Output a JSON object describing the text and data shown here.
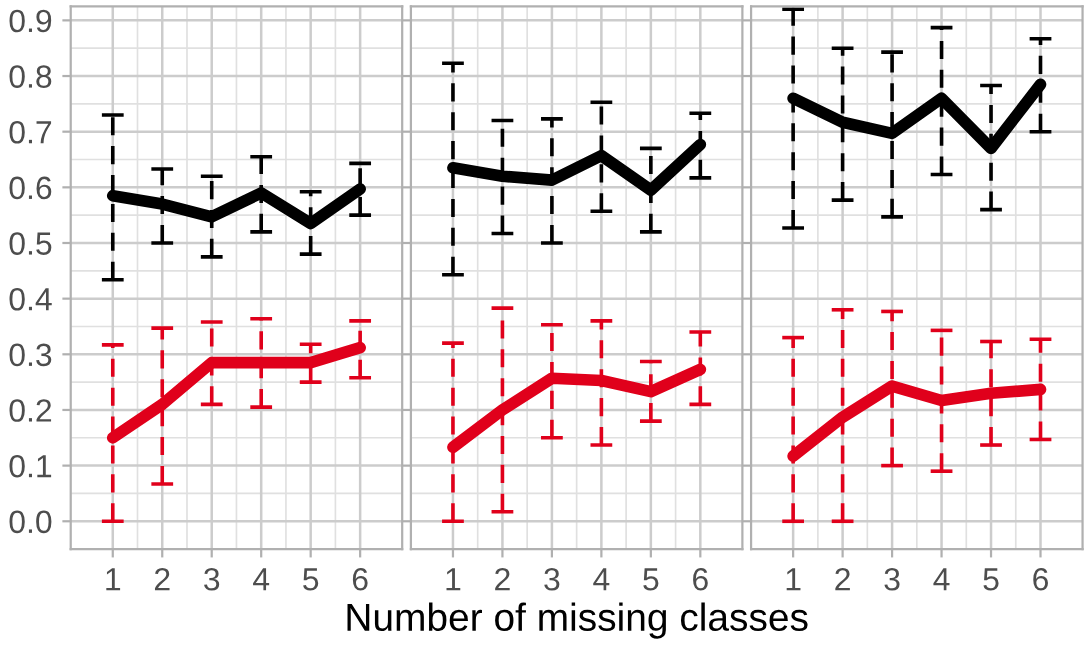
{
  "chart_data": [
    {
      "type": "line",
      "x": [
        1,
        2,
        3,
        4,
        5,
        6
      ],
      "xlim": [
        0.15,
        6.85
      ],
      "xticks": [
        1,
        2,
        3,
        4,
        5,
        6
      ],
      "ylim": [
        -0.05,
        0.925
      ],
      "yticks": [
        {
          "value": 0,
          "label": "0.0"
        },
        0.1,
        0.2,
        0.3,
        0.4,
        0.5,
        0.6,
        0.7,
        0.8,
        0.9
      ],
      "grid": true,
      "marker": "none",
      "line_style": "solid",
      "series": [
        {
          "color": "#000000",
          "values": [
            0.585,
            0.57,
            0.547,
            0.59,
            0.535,
            0.597
          ],
          "errors": [
            [
              0.434,
              0.73
            ],
            [
              0.5,
              0.633
            ],
            [
              0.475,
              0.62
            ],
            [
              0.52,
              0.655
            ],
            [
              0.48,
              0.592
            ],
            [
              0.55,
              0.643
            ]
          ]
        },
        {
          "color": "#e0001b",
          "values": [
            0.15,
            0.21,
            0.285,
            0.285,
            0.285,
            0.312
          ],
          "errors": [
            [
              0.0,
              0.317
            ],
            [
              0.067,
              0.347
            ],
            [
              0.21,
              0.358
            ],
            [
              0.205,
              0.364
            ],
            [
              0.25,
              0.318
            ],
            [
              0.258,
              0.36
            ]
          ]
        }
      ]
    },
    {
      "type": "line",
      "x": [
        1,
        2,
        3,
        4,
        5,
        6
      ],
      "xlim": [
        0.15,
        6.85
      ],
      "xticks": [
        1,
        2,
        3,
        4,
        5,
        6
      ],
      "ylim": [
        -0.05,
        0.925
      ],
      "yticks": [
        0,
        0.1,
        0.2,
        0.3,
        0.4,
        0.5,
        0.6,
        0.7,
        0.8,
        0.9
      ],
      "tick_labels": "x",
      "grid": true,
      "marker": "none",
      "line_style": "solid",
      "xlabel": "Number of missing classes",
      "series": [
        {
          "color": "#000000",
          "values": [
            0.635,
            0.62,
            0.613,
            0.657,
            0.595,
            0.677
          ],
          "errors": [
            [
              0.443,
              0.823
            ],
            [
              0.517,
              0.72
            ],
            [
              0.5,
              0.723
            ],
            [
              0.557,
              0.753
            ],
            [
              0.52,
              0.67
            ],
            [
              0.617,
              0.733
            ]
          ]
        },
        {
          "color": "#e0001b",
          "values": [
            0.133,
            0.2,
            0.257,
            0.253,
            0.233,
            0.273
          ],
          "errors": [
            [
              0.0,
              0.32
            ],
            [
              0.017,
              0.383
            ],
            [
              0.15,
              0.353
            ],
            [
              0.137,
              0.36
            ],
            [
              0.18,
              0.287
            ],
            [
              0.21,
              0.34
            ]
          ]
        }
      ]
    },
    {
      "type": "line",
      "x": [
        1,
        2,
        3,
        4,
        5,
        6
      ],
      "xlim": [
        0.15,
        6.85
      ],
      "xticks": [
        1,
        2,
        3,
        4,
        5,
        6
      ],
      "ylim": [
        -0.05,
        0.925
      ],
      "yticks": [
        0,
        0.1,
        0.2,
        0.3,
        0.4,
        0.5,
        0.6,
        0.7,
        0.8,
        0.9
      ],
      "tick_labels": "x",
      "grid": true,
      "marker": "none",
      "line_style": "solid",
      "series": [
        {
          "color": "#000000",
          "values": [
            0.76,
            0.717,
            0.697,
            0.76,
            0.67,
            0.785
          ],
          "errors": [
            [
              0.527,
              0.92
            ],
            [
              0.577,
              0.85
            ],
            [
              0.547,
              0.843
            ],
            [
              0.623,
              0.887
            ],
            [
              0.56,
              0.783
            ],
            [
              0.7,
              0.867
            ]
          ]
        },
        {
          "color": "#e0001b",
          "values": [
            0.117,
            0.187,
            0.243,
            0.217,
            0.23,
            0.237
          ],
          "errors": [
            [
              0.0,
              0.33
            ],
            [
              0.0,
              0.38
            ],
            [
              0.1,
              0.377
            ],
            [
              0.09,
              0.343
            ],
            [
              0.137,
              0.323
            ],
            [
              0.147,
              0.327
            ]
          ]
        }
      ]
    }
  ]
}
